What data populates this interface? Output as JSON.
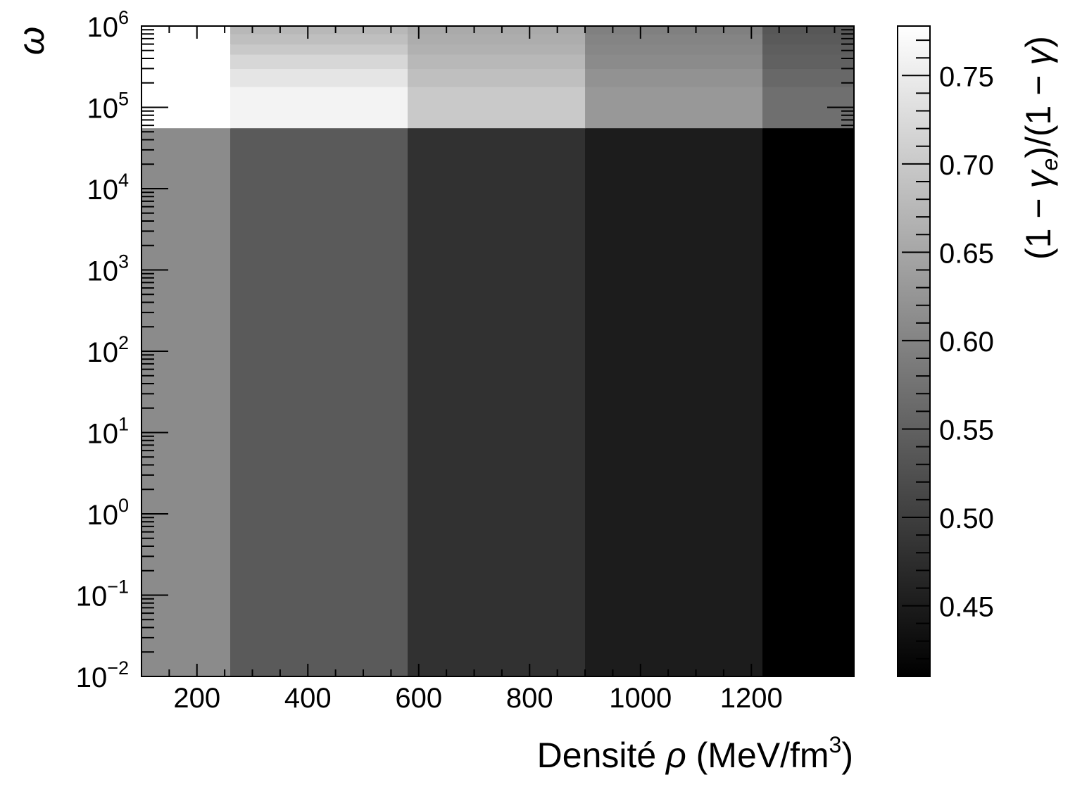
{
  "chart_data": {
    "type": "heatmap",
    "title": "",
    "xlabel": "Densité ρ (MeV/fm³)",
    "xlabel_parts": {
      "text": "Densité ",
      "symbol": "ρ",
      "unit": " (MeV/fm",
      "unit_sup": "3",
      "close": ")"
    },
    "ylabel": "ω",
    "colorbar_label": "(1 − γe)/(1 − γ)",
    "colorbar_label_parts": {
      "open": "(1 − ",
      "g1": "γ",
      "g1_sub": "e",
      "mid": ")/(1 − ",
      "g2": "γ",
      "close": ")"
    },
    "xlim": [
      100,
      1385
    ],
    "x_ticks": [
      200,
      400,
      600,
      800,
      1000,
      1200
    ],
    "x_tick_labels": [
      "200",
      "400",
      "600",
      "800",
      "1000",
      "1200"
    ],
    "y_scale": "log",
    "ylim": [
      0.01,
      1000000
    ],
    "y_tick_labels": [
      {
        "value": 0.01,
        "base": "10",
        "exp": "−2"
      },
      {
        "value": 0.1,
        "base": "10",
        "exp": "−1"
      },
      {
        "value": 1,
        "base": "10",
        "exp": "0"
      },
      {
        "value": 10,
        "base": "10",
        "exp": "1"
      },
      {
        "value": 100,
        "base": "10",
        "exp": "2"
      },
      {
        "value": 1000,
        "base": "10",
        "exp": "3"
      },
      {
        "value": 10000,
        "base": "10",
        "exp": "4"
      },
      {
        "value": 100000,
        "base": "10",
        "exp": "5"
      },
      {
        "value": 1000000,
        "base": "10",
        "exp": "6"
      }
    ],
    "x_edges": [
      100,
      260,
      580,
      900,
      1220,
      1385
    ],
    "rows": [
      {
        "y_from": 0.01,
        "y_to": 56000,
        "values": [
          0.61,
          0.54,
          0.48,
          0.45,
          0.41
        ]
      },
      {
        "y_from": 56000,
        "y_to": 180000,
        "values": [
          0.78,
          0.76,
          0.7,
          0.63,
          0.57
        ]
      },
      {
        "y_from": 180000,
        "y_to": 300000,
        "values": [
          0.78,
          0.74,
          0.685,
          0.62,
          0.56
        ]
      },
      {
        "y_from": 300000,
        "y_to": 450000,
        "values": [
          0.78,
          0.72,
          0.675,
          0.61,
          0.55
        ]
      },
      {
        "y_from": 450000,
        "y_to": 600000,
        "values": [
          0.78,
          0.7,
          0.665,
          0.605,
          0.545
        ]
      },
      {
        "y_from": 600000,
        "y_to": 800000,
        "values": [
          0.78,
          0.685,
          0.66,
          0.6,
          0.54
        ]
      },
      {
        "y_from": 800000,
        "y_to": 1000000,
        "values": [
          0.78,
          0.675,
          0.655,
          0.595,
          0.535
        ]
      }
    ],
    "colorbar": {
      "colormap": "grayscale",
      "range": [
        0.41,
        0.778
      ],
      "ticks": [
        0.45,
        0.5,
        0.55,
        0.6,
        0.65,
        0.7,
        0.75
      ],
      "tick_labels": [
        "0.45",
        "0.50",
        "0.55",
        "0.60",
        "0.65",
        "0.70",
        "0.75"
      ],
      "low_color": "#000000",
      "high_color": "#ffffff"
    },
    "grid": false,
    "legend": "none"
  }
}
